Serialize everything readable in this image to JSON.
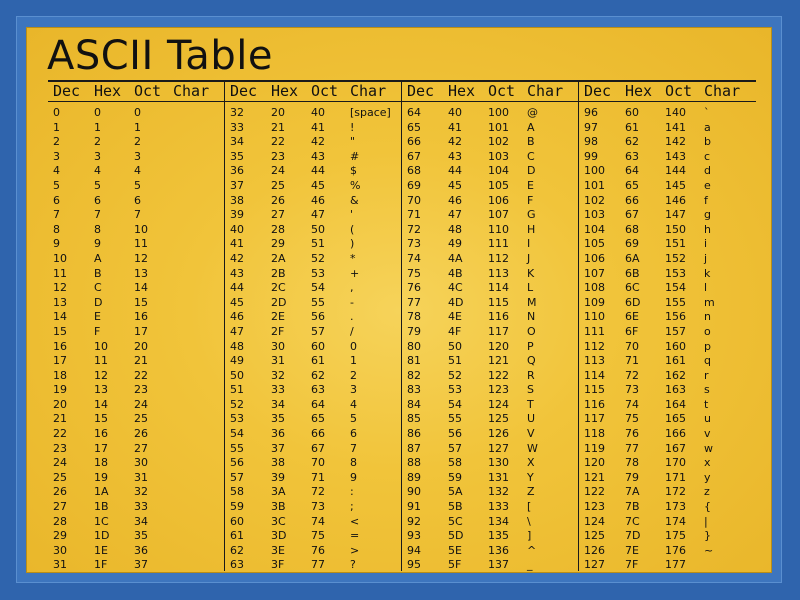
{
  "title": "ASCII Table",
  "headers": [
    "Dec",
    "Hex",
    "Oct",
    "Char"
  ],
  "blocks": [
    {
      "rows": [
        [
          "0",
          "0",
          "0",
          ""
        ],
        [
          "1",
          "1",
          "1",
          ""
        ],
        [
          "2",
          "2",
          "2",
          ""
        ],
        [
          "3",
          "3",
          "3",
          ""
        ],
        [
          "4",
          "4",
          "4",
          ""
        ],
        [
          "5",
          "5",
          "5",
          ""
        ],
        [
          "6",
          "6",
          "6",
          ""
        ],
        [
          "7",
          "7",
          "7",
          ""
        ],
        [
          "8",
          "8",
          "10",
          ""
        ],
        [
          "9",
          "9",
          "11",
          ""
        ],
        [
          "10",
          "A",
          "12",
          ""
        ],
        [
          "11",
          "B",
          "13",
          ""
        ],
        [
          "12",
          "C",
          "14",
          ""
        ],
        [
          "13",
          "D",
          "15",
          ""
        ],
        [
          "14",
          "E",
          "16",
          ""
        ],
        [
          "15",
          "F",
          "17",
          ""
        ],
        [
          "16",
          "10",
          "20",
          ""
        ],
        [
          "17",
          "11",
          "21",
          ""
        ],
        [
          "18",
          "12",
          "22",
          ""
        ],
        [
          "19",
          "13",
          "23",
          ""
        ],
        [
          "20",
          "14",
          "24",
          ""
        ],
        [
          "21",
          "15",
          "25",
          ""
        ],
        [
          "22",
          "16",
          "26",
          ""
        ],
        [
          "23",
          "17",
          "27",
          ""
        ],
        [
          "24",
          "18",
          "30",
          ""
        ],
        [
          "25",
          "19",
          "31",
          ""
        ],
        [
          "26",
          "1A",
          "32",
          ""
        ],
        [
          "27",
          "1B",
          "33",
          ""
        ],
        [
          "28",
          "1C",
          "34",
          ""
        ],
        [
          "29",
          "1D",
          "35",
          ""
        ],
        [
          "30",
          "1E",
          "36",
          ""
        ],
        [
          "31",
          "1F",
          "37",
          ""
        ]
      ]
    },
    {
      "rows": [
        [
          "32",
          "20",
          "40",
          "[space]"
        ],
        [
          "33",
          "21",
          "41",
          "!"
        ],
        [
          "34",
          "22",
          "42",
          "\""
        ],
        [
          "35",
          "23",
          "43",
          "#"
        ],
        [
          "36",
          "24",
          "44",
          "$"
        ],
        [
          "37",
          "25",
          "45",
          "%"
        ],
        [
          "38",
          "26",
          "46",
          "&"
        ],
        [
          "39",
          "27",
          "47",
          "'"
        ],
        [
          "40",
          "28",
          "50",
          "("
        ],
        [
          "41",
          "29",
          "51",
          ")"
        ],
        [
          "42",
          "2A",
          "52",
          "*"
        ],
        [
          "43",
          "2B",
          "53",
          "+"
        ],
        [
          "44",
          "2C",
          "54",
          ","
        ],
        [
          "45",
          "2D",
          "55",
          "-"
        ],
        [
          "46",
          "2E",
          "56",
          "."
        ],
        [
          "47",
          "2F",
          "57",
          "/"
        ],
        [
          "48",
          "30",
          "60",
          "0"
        ],
        [
          "49",
          "31",
          "61",
          "1"
        ],
        [
          "50",
          "32",
          "62",
          "2"
        ],
        [
          "51",
          "33",
          "63",
          "3"
        ],
        [
          "52",
          "34",
          "64",
          "4"
        ],
        [
          "53",
          "35",
          "65",
          "5"
        ],
        [
          "54",
          "36",
          "66",
          "6"
        ],
        [
          "55",
          "37",
          "67",
          "7"
        ],
        [
          "56",
          "38",
          "70",
          "8"
        ],
        [
          "57",
          "39",
          "71",
          "9"
        ],
        [
          "58",
          "3A",
          "72",
          ":"
        ],
        [
          "59",
          "3B",
          "73",
          ";"
        ],
        [
          "60",
          "3C",
          "74",
          "<"
        ],
        [
          "61",
          "3D",
          "75",
          "="
        ],
        [
          "62",
          "3E",
          "76",
          ">"
        ],
        [
          "63",
          "3F",
          "77",
          "?"
        ]
      ]
    },
    {
      "rows": [
        [
          "64",
          "40",
          "100",
          "@"
        ],
        [
          "65",
          "41",
          "101",
          "A"
        ],
        [
          "66",
          "42",
          "102",
          "B"
        ],
        [
          "67",
          "43",
          "103",
          "C"
        ],
        [
          "68",
          "44",
          "104",
          "D"
        ],
        [
          "69",
          "45",
          "105",
          "E"
        ],
        [
          "70",
          "46",
          "106",
          "F"
        ],
        [
          "71",
          "47",
          "107",
          "G"
        ],
        [
          "72",
          "48",
          "110",
          "H"
        ],
        [
          "73",
          "49",
          "111",
          "I"
        ],
        [
          "74",
          "4A",
          "112",
          "J"
        ],
        [
          "75",
          "4B",
          "113",
          "K"
        ],
        [
          "76",
          "4C",
          "114",
          "L"
        ],
        [
          "77",
          "4D",
          "115",
          "M"
        ],
        [
          "78",
          "4E",
          "116",
          "N"
        ],
        [
          "79",
          "4F",
          "117",
          "O"
        ],
        [
          "80",
          "50",
          "120",
          "P"
        ],
        [
          "81",
          "51",
          "121",
          "Q"
        ],
        [
          "82",
          "52",
          "122",
          "R"
        ],
        [
          "83",
          "53",
          "123",
          "S"
        ],
        [
          "84",
          "54",
          "124",
          "T"
        ],
        [
          "85",
          "55",
          "125",
          "U"
        ],
        [
          "86",
          "56",
          "126",
          "V"
        ],
        [
          "87",
          "57",
          "127",
          "W"
        ],
        [
          "88",
          "58",
          "130",
          "X"
        ],
        [
          "89",
          "59",
          "131",
          "Y"
        ],
        [
          "90",
          "5A",
          "132",
          "Z"
        ],
        [
          "91",
          "5B",
          "133",
          "["
        ],
        [
          "92",
          "5C",
          "134",
          "\\"
        ],
        [
          "93",
          "5D",
          "135",
          "]"
        ],
        [
          "94",
          "5E",
          "136",
          "^"
        ],
        [
          "95",
          "5F",
          "137",
          "_"
        ]
      ]
    },
    {
      "rows": [
        [
          "96",
          "60",
          "140",
          "`"
        ],
        [
          "97",
          "61",
          "141",
          "a"
        ],
        [
          "98",
          "62",
          "142",
          "b"
        ],
        [
          "99",
          "63",
          "143",
          "c"
        ],
        [
          "100",
          "64",
          "144",
          "d"
        ],
        [
          "101",
          "65",
          "145",
          "e"
        ],
        [
          "102",
          "66",
          "146",
          "f"
        ],
        [
          "103",
          "67",
          "147",
          "g"
        ],
        [
          "104",
          "68",
          "150",
          "h"
        ],
        [
          "105",
          "69",
          "151",
          "i"
        ],
        [
          "106",
          "6A",
          "152",
          "j"
        ],
        [
          "107",
          "6B",
          "153",
          "k"
        ],
        [
          "108",
          "6C",
          "154",
          "l"
        ],
        [
          "109",
          "6D",
          "155",
          "m"
        ],
        [
          "110",
          "6E",
          "156",
          "n"
        ],
        [
          "111",
          "6F",
          "157",
          "o"
        ],
        [
          "112",
          "70",
          "160",
          "p"
        ],
        [
          "113",
          "71",
          "161",
          "q"
        ],
        [
          "114",
          "72",
          "162",
          "r"
        ],
        [
          "115",
          "73",
          "163",
          "s"
        ],
        [
          "116",
          "74",
          "164",
          "t"
        ],
        [
          "117",
          "75",
          "165",
          "u"
        ],
        [
          "118",
          "76",
          "166",
          "v"
        ],
        [
          "119",
          "77",
          "167",
          "w"
        ],
        [
          "120",
          "78",
          "170",
          "x"
        ],
        [
          "121",
          "79",
          "171",
          "y"
        ],
        [
          "122",
          "7A",
          "172",
          "z"
        ],
        [
          "123",
          "7B",
          "173",
          "{"
        ],
        [
          "124",
          "7C",
          "174",
          "|"
        ],
        [
          "125",
          "7D",
          "175",
          "}"
        ],
        [
          "126",
          "7E",
          "176",
          "~"
        ],
        [
          "127",
          "7F",
          "177",
          ""
        ]
      ]
    }
  ]
}
